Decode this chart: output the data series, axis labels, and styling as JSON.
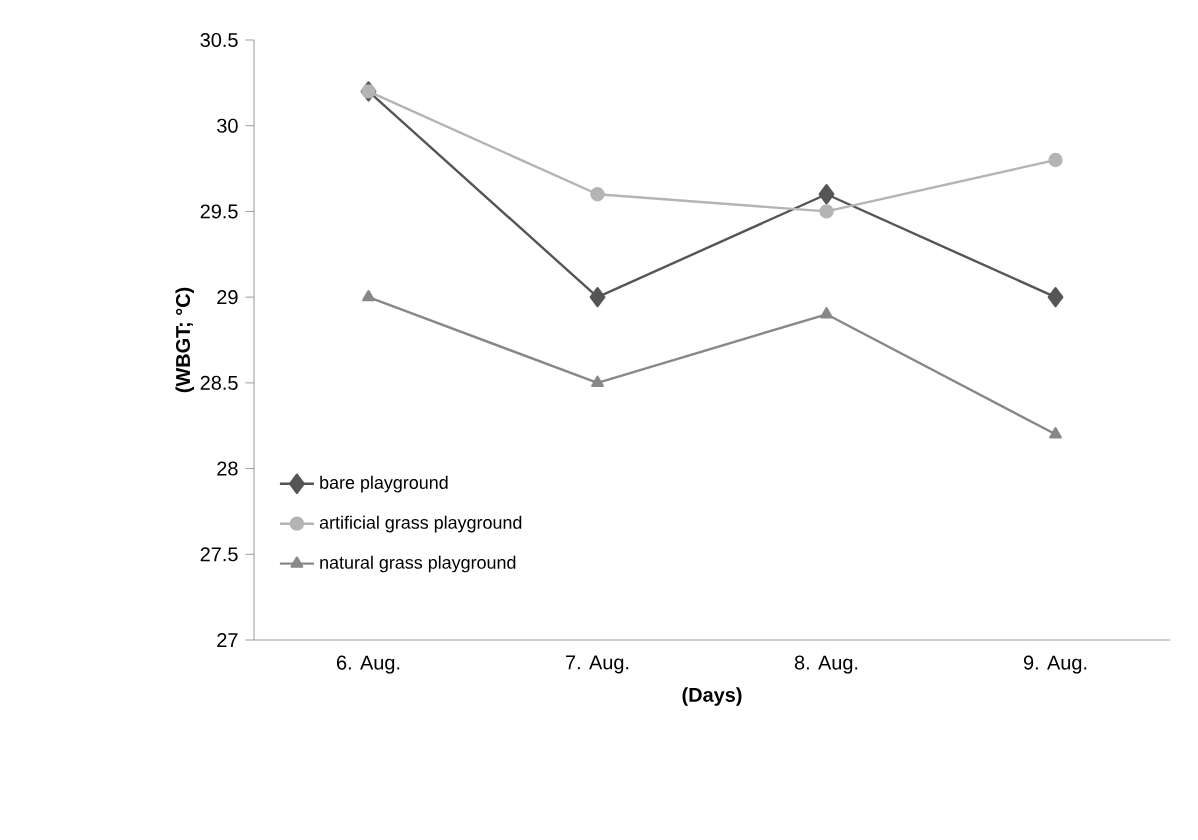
{
  "chart_data": {
    "type": "line",
    "xlabel": "(Days)",
    "ylabel": "(WBGT; °C)",
    "categories": [
      "6. Aug.",
      "7. Aug.",
      "8. Aug.",
      "9. Aug."
    ],
    "ylim": [
      27,
      30.5
    ],
    "yticks": [
      27,
      27.5,
      28,
      28.5,
      29,
      29.5,
      30,
      30.5
    ],
    "legend": "bottom left",
    "line_style": "solid",
    "series": [
      {
        "name": "bare playground",
        "color": "#555555",
        "marker": "diamond",
        "values": [
          30.2,
          29.0,
          29.6,
          29.0
        ]
      },
      {
        "name": "artificial grass playground",
        "color": "#b4b4b4",
        "marker": "circle",
        "values": [
          30.2,
          29.6,
          29.5,
          29.8
        ]
      },
      {
        "name": "natural grass playground",
        "color": "#888888",
        "marker": "triangle",
        "values": [
          29.0,
          28.5,
          28.9,
          28.2
        ]
      }
    ]
  }
}
